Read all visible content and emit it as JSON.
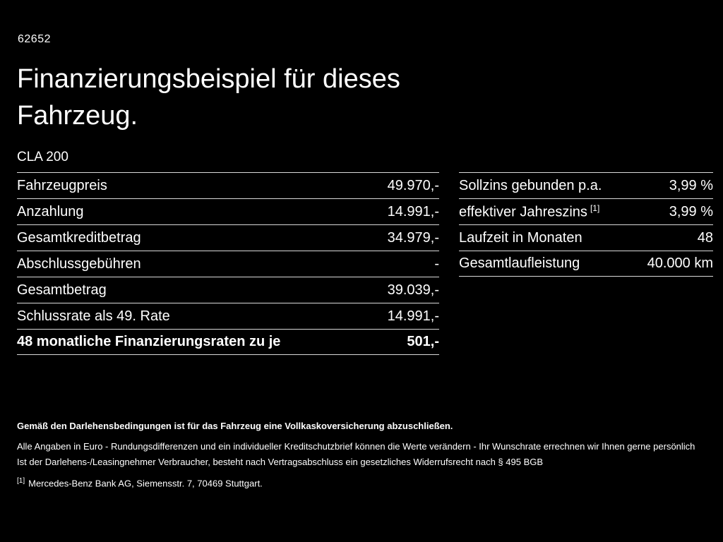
{
  "meta": {
    "page_id": "62652"
  },
  "header": {
    "title": "Finanzierungsbeispiel für dieses Fahrzeug.",
    "model": "CLA 200"
  },
  "left_table": {
    "rows": [
      {
        "label": "Fahrzeugpreis",
        "value": "49.970,-"
      },
      {
        "label": "Anzahlung",
        "value": "14.991,-"
      },
      {
        "label": "Gesamtkreditbetrag",
        "value": "34.979,-"
      },
      {
        "label": "Abschlussgebühren",
        "value": "-"
      },
      {
        "label": "Gesamtbetrag",
        "value": "39.039,-"
      },
      {
        "label": "Schlussrate als 49. Rate",
        "value": "14.991,-"
      },
      {
        "label": "48 monatliche Finanzierungsraten zu je",
        "value": "501,-"
      }
    ]
  },
  "right_table": {
    "rows": [
      {
        "label": "Sollzins gebunden p.a.",
        "value": "3,99 %"
      },
      {
        "label": "effektiver Jahreszins",
        "sup": "[1]",
        "value": "3,99 %"
      },
      {
        "label": "Laufzeit in Monaten",
        "value": "48"
      },
      {
        "label": "Gesamtlaufleistung",
        "value": "40.000 km"
      }
    ]
  },
  "footer": {
    "line1": "Gemäß den Darlehensbedingungen ist für das Fahrzeug eine Vollkaskoversicherung abzuschließen.",
    "line2": "Alle Angaben in Euro - Rundungsdifferenzen und ein individueller Kreditschutzbrief können die Werte verändern - Ihr Wunschrate errechnen wir Ihnen gerne persönlich",
    "line3": "Ist der Darlehens-/Leasingnehmer Verbraucher, besteht nach Vertragsabschluss ein gesetzliches Widerrufsrecht nach § 495 BGB",
    "footnote_marker": "[1]",
    "footnote_text": "Mercedes-Benz Bank AG, Siemensstr. 7, 70469 Stuttgart."
  },
  "colors": {
    "background": "#000000",
    "text": "#ffffff",
    "divider": "#d9d9d9"
  }
}
